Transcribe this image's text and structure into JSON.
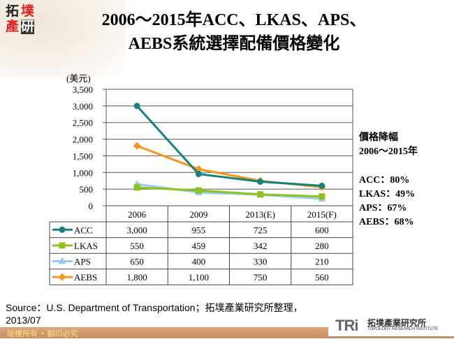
{
  "logo": {
    "chars": [
      "拓",
      "墣",
      "產",
      "研"
    ]
  },
  "title": {
    "line1": "2006～2015年ACC、LKAS、APS、",
    "line2": "AEBS系統選擇配備價格變化"
  },
  "chart_data": {
    "type": "line",
    "ylabel": "(美元)",
    "ylim": [
      0,
      3500
    ],
    "yticks": [
      "0",
      "500",
      "1,000",
      "1,500",
      "2,000",
      "2,500",
      "3,000",
      "3,500"
    ],
    "categories": [
      "2006",
      "2009",
      "2013(E)",
      "2015(F)"
    ],
    "grid": true,
    "legend": "table-left",
    "series": [
      {
        "name": "ACC",
        "values": [
          3000,
          955,
          725,
          600
        ],
        "labels": [
          "3,000",
          "955",
          "725",
          "600"
        ],
        "color": "#17807e",
        "marker": "circle"
      },
      {
        "name": "LKAS",
        "values": [
          550,
          459,
          342,
          280
        ],
        "labels": [
          "550",
          "459",
          "342",
          "280"
        ],
        "color": "#8cc21a",
        "marker": "square"
      },
      {
        "name": "APS",
        "values": [
          650,
          400,
          330,
          210
        ],
        "labels": [
          "650",
          "400",
          "330",
          "210"
        ],
        "color": "#99c9f5",
        "marker": "triangle"
      },
      {
        "name": "AEBS",
        "values": [
          1800,
          1100,
          750,
          560
        ],
        "labels": [
          "1,800",
          "1,100",
          "750",
          "560"
        ],
        "color": "#f7941d",
        "marker": "diamond"
      }
    ]
  },
  "notes": {
    "heading": "價格降幅",
    "period": "2006～2015年",
    "items": [
      "ACC：80%",
      "LKAS：49%",
      "APS：67%",
      "AEBS：68%"
    ]
  },
  "source": {
    "line1": "Source：U.S. Department of Transportation；拓墣產業研究所整理，",
    "line2": "2013/07"
  },
  "footer": {
    "copyright": "版權所有 • 翻印必究"
  },
  "brand": {
    "mark": "TRi",
    "name_cn": "拓墣產業研究所",
    "name_en": "TOPOLOGY RESEARCH INSTITUTE"
  }
}
